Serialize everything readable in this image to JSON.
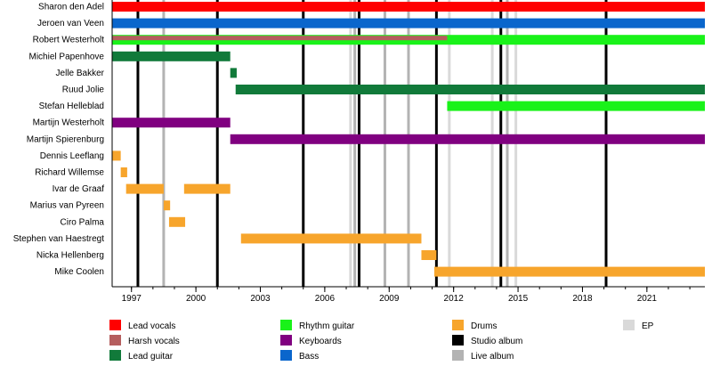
{
  "chart_data": {
    "type": "timeline",
    "x_axis": {
      "range": [
        1996.1,
        2023.7
      ],
      "ticks": [
        1997,
        2000,
        2003,
        2006,
        2009,
        2012,
        2015,
        2018,
        2021
      ],
      "tick_labels": [
        "1997",
        "2000",
        "2003",
        "2006",
        "2009",
        "2012",
        "2015",
        "2018",
        "2021"
      ]
    },
    "members": [
      {
        "name": "Sharon den Adel",
        "periods": [
          {
            "role": "Lead vocals",
            "start": 1996.1,
            "end": 2023.7
          }
        ]
      },
      {
        "name": "Jeroen van Veen",
        "periods": [
          {
            "role": "Bass",
            "start": 1996.1,
            "end": 2023.7
          }
        ]
      },
      {
        "name": "Robert Westerholt",
        "periods": [
          {
            "role": "Rhythm guitar",
            "start": 1996.1,
            "end": 2023.7
          },
          {
            "role": "Harsh vocals",
            "start": 1996.1,
            "end": 2011.7
          }
        ]
      },
      {
        "name": "Michiel Papenhove",
        "periods": [
          {
            "role": "Lead guitar",
            "start": 1996.1,
            "end": 2001.6
          }
        ]
      },
      {
        "name": "Jelle Bakker",
        "periods": [
          {
            "role": "Lead guitar",
            "start": 2001.6,
            "end": 2001.9
          }
        ]
      },
      {
        "name": "Ruud Jolie",
        "periods": [
          {
            "role": "Lead guitar",
            "start": 2001.85,
            "end": 2023.7
          }
        ]
      },
      {
        "name": "Stefan Helleblad",
        "periods": [
          {
            "role": "Rhythm guitar",
            "start": 2011.7,
            "end": 2023.7
          }
        ]
      },
      {
        "name": "Martijn Westerholt",
        "periods": [
          {
            "role": "Keyboards",
            "start": 1996.1,
            "end": 2001.6
          }
        ]
      },
      {
        "name": "Martijn Spierenburg",
        "periods": [
          {
            "role": "Keyboards",
            "start": 2001.6,
            "end": 2023.7
          }
        ]
      },
      {
        "name": "Dennis Leeflang",
        "periods": [
          {
            "role": "Drums",
            "start": 1996.1,
            "end": 1996.5
          }
        ]
      },
      {
        "name": "Richard Willemse",
        "periods": [
          {
            "role": "Drums",
            "start": 1996.5,
            "end": 1996.8
          }
        ]
      },
      {
        "name": "Ivar de Graaf",
        "periods": [
          {
            "role": "Drums",
            "start": 1996.75,
            "end": 1998.5
          },
          {
            "role": "Drums",
            "start": 1999.45,
            "end": 2001.6
          }
        ]
      },
      {
        "name": "Marius van Pyreen",
        "periods": [
          {
            "role": "Drums",
            "start": 1998.5,
            "end": 1998.8
          }
        ]
      },
      {
        "name": "Ciro Palma",
        "periods": [
          {
            "role": "Drums",
            "start": 1998.75,
            "end": 1999.5
          }
        ]
      },
      {
        "name": "Stephen van Haestregt",
        "periods": [
          {
            "role": "Drums",
            "start": 2002.1,
            "end": 2010.5
          }
        ]
      },
      {
        "name": "Nicka Hellenberg",
        "periods": [
          {
            "role": "Drums",
            "start": 2010.5,
            "end": 2011.2
          }
        ]
      },
      {
        "name": "Mike Coolen",
        "periods": [
          {
            "role": "Drums",
            "start": 2011.1,
            "end": 2023.7
          }
        ]
      }
    ],
    "releases": [
      {
        "type": "Studio album",
        "year": 1997.3
      },
      {
        "type": "Studio album",
        "year": 2001.0
      },
      {
        "type": "Studio album",
        "year": 2005.0
      },
      {
        "type": "Studio album",
        "year": 2007.6
      },
      {
        "type": "Studio album",
        "year": 2011.2
      },
      {
        "type": "Studio album",
        "year": 2014.2
      },
      {
        "type": "Studio album",
        "year": 2019.1
      },
      {
        "type": "Live album",
        "year": 1998.5
      },
      {
        "type": "Live album",
        "year": 2007.4
      },
      {
        "type": "Live album",
        "year": 2008.8
      },
      {
        "type": "Live album",
        "year": 2009.9
      },
      {
        "type": "Live album",
        "year": 2014.5
      },
      {
        "type": "EP",
        "year": 2007.2
      },
      {
        "type": "EP",
        "year": 2011.8
      },
      {
        "type": "EP",
        "year": 2013.8
      },
      {
        "type": "EP",
        "year": 2014.9
      }
    ],
    "legend": {
      "placement": "bottom",
      "items": [
        {
          "label": "Lead vocals",
          "color": "#ff0000"
        },
        {
          "label": "Harsh vocals",
          "color": "#b55e5e"
        },
        {
          "label": "Lead guitar",
          "color": "#117a3a"
        },
        {
          "label": "Rhythm guitar",
          "color": "#19f219"
        },
        {
          "label": "Keyboards",
          "color": "#800080"
        },
        {
          "label": "Bass",
          "color": "#0a66cc"
        },
        {
          "label": "Drums",
          "color": "#f7a52c"
        },
        {
          "label": "Studio album",
          "color": "#000000"
        },
        {
          "label": "Live album",
          "color": "#b3b3b3"
        },
        {
          "label": "EP",
          "color": "#d9d9d9"
        }
      ]
    }
  }
}
